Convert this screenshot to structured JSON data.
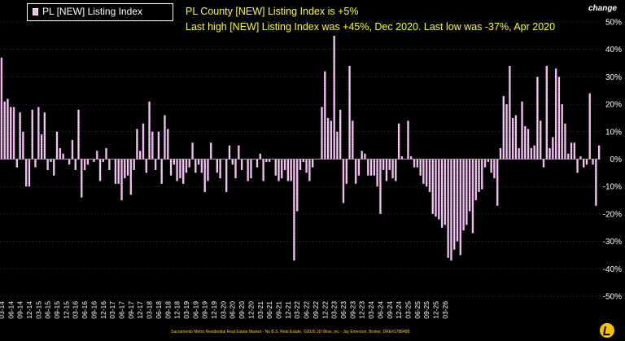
{
  "legend": {
    "label": "PL [NEW] Listing Index",
    "swatch_color": "#f2b8f2"
  },
  "headline": "PL County [NEW] Listing Index is +5%",
  "subheadline": "Last high [NEW] Listing Index was +45%, Dec 2020. Last low was -37%, Apr 2020",
  "axis_title": "change",
  "footer": "Sacramento Metro Residential Real Estate Market - No B.S. Real Estate, ©2026 JD Wise, inc - Jay Emerson, Broker, DRE#1788488",
  "chart_data": {
    "type": "bar",
    "title": "",
    "xlabel": "",
    "ylabel": "change",
    "ylim": [
      -50,
      50
    ],
    "y_ticks": [
      "50%",
      "40%",
      "30%",
      "20%",
      "10%",
      "0%",
      "-10%",
      "-20%",
      "-30%",
      "-40%",
      "-50%"
    ],
    "x_ticks": [
      "03-14",
      "06-14",
      "09-14",
      "12-14",
      "03-15",
      "06-15",
      "09-15",
      "12-15",
      "03-16",
      "06-16",
      "09-16",
      "12-16",
      "03-17",
      "06-17",
      "09-17",
      "12-17",
      "03-18",
      "06-18",
      "09-18",
      "12-18",
      "03-19",
      "06-19",
      "09-19",
      "12-19",
      "03-20",
      "06-20",
      "09-20",
      "12-20",
      "03-21",
      "06-21",
      "09-21",
      "12-21",
      "03-22",
      "06-22",
      "09-22",
      "12-22",
      "03-23",
      "06-23",
      "09-23",
      "12-23",
      "03-24",
      "06-24",
      "09-24",
      "12-24",
      "03-25",
      "06-25",
      "09-25",
      "12-25",
      "03-26"
    ],
    "start_month": "2014-03",
    "series": [
      {
        "name": "PL [NEW] Listing Index",
        "color": "#f2b8f2",
        "values": [
          37,
          21,
          22,
          19,
          19,
          -3,
          17,
          10,
          -10,
          -10,
          18,
          -3,
          19,
          9,
          17,
          -4,
          -1,
          -6,
          10,
          4,
          2,
          0,
          -2,
          7,
          -4,
          18,
          -14,
          -4,
          -2,
          0,
          -1,
          3,
          -8,
          -1,
          4,
          -4,
          0,
          -9,
          -9,
          -15,
          -7,
          -6,
          -13,
          -4,
          11,
          3,
          13,
          -5,
          21,
          10,
          -4,
          10,
          -9,
          16,
          11,
          -6,
          -2,
          -8,
          -7,
          -9,
          -5,
          -3,
          6,
          -5,
          -2,
          -5,
          -12,
          -8,
          6,
          0,
          -5,
          -7,
          0,
          -12,
          5,
          -2,
          -7,
          5,
          -4,
          0,
          -8,
          -7,
          0,
          -3,
          2,
          -8,
          -1,
          -1,
          0,
          -6,
          -8,
          -7,
          -4,
          -8,
          -8,
          -37,
          -19,
          -4,
          -1,
          -5,
          -8,
          -3,
          0,
          0,
          19,
          32,
          15,
          14,
          45,
          10,
          18,
          -16,
          -9,
          34,
          14,
          -9,
          -6,
          3,
          2,
          -6,
          -6,
          -6,
          -10,
          -20,
          -4,
          -8,
          -4,
          -7,
          -8,
          13,
          1,
          0,
          14,
          1,
          -3,
          -3,
          -6,
          -9,
          -10,
          -12,
          -20,
          -21,
          -22,
          -25,
          -24,
          -36,
          -37,
          -33,
          -30,
          -35,
          -26,
          -24,
          -19,
          -27,
          -15,
          -12,
          -11,
          -3,
          -1,
          -5,
          -7,
          -17,
          4,
          23,
          20,
          34,
          15,
          16,
          4,
          21,
          12,
          11,
          4,
          5,
          30,
          14,
          -3,
          34,
          4,
          8,
          33,
          30,
          20,
          13,
          2,
          6,
          6,
          -5,
          1,
          -3,
          -2,
          24,
          -2,
          -17,
          5
        ]
      }
    ]
  }
}
